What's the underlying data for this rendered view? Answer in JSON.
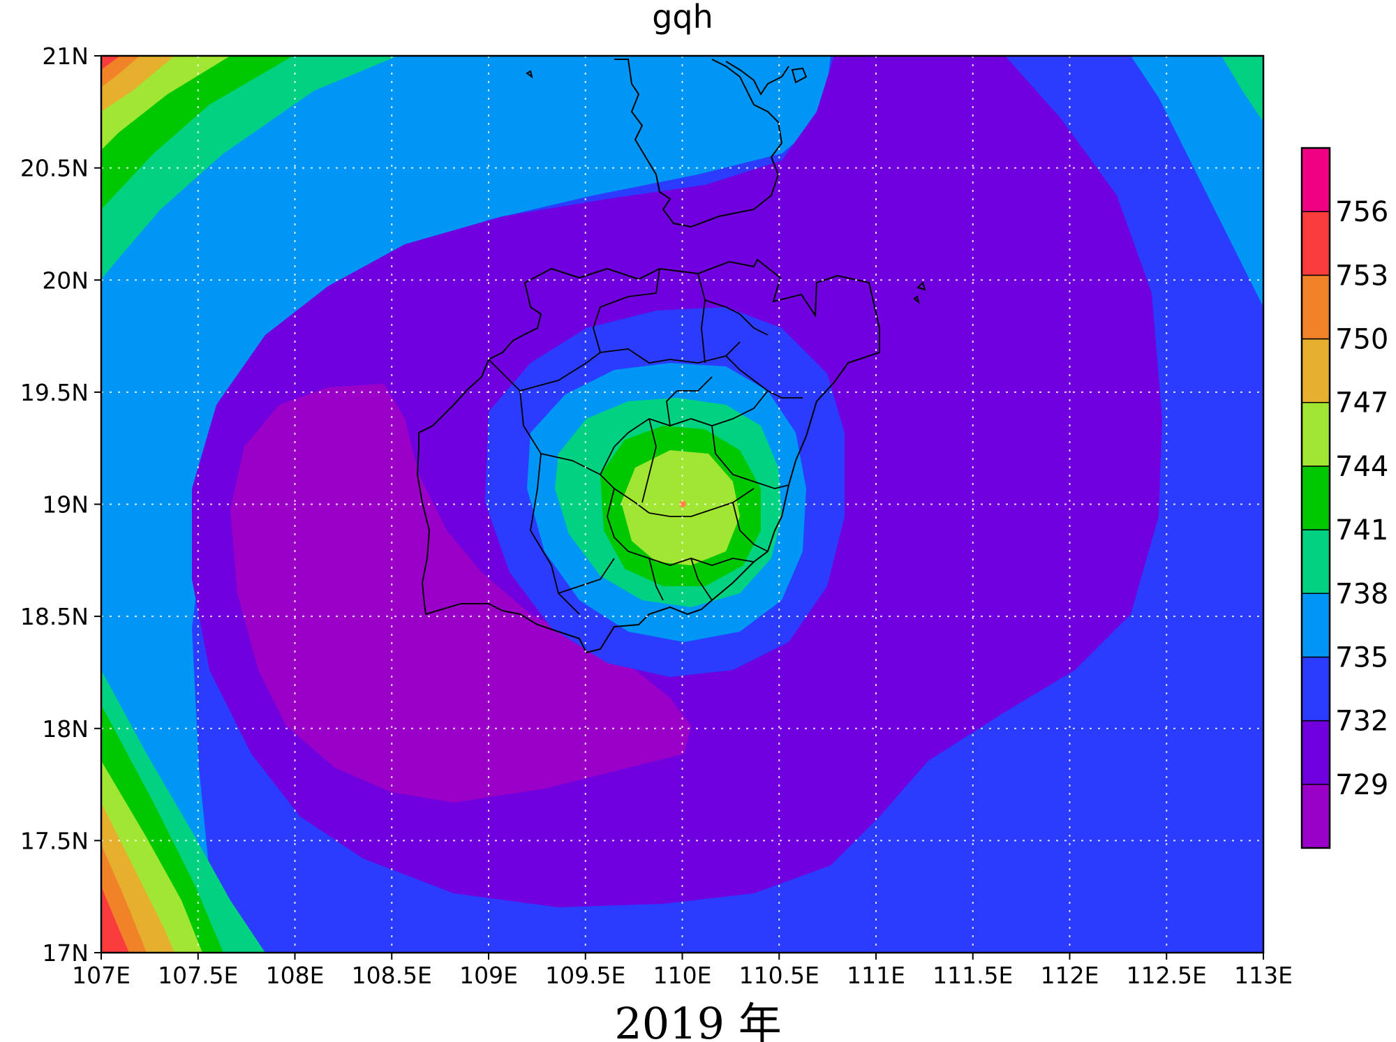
{
  "title": "gqh",
  "caption": "2019 年",
  "chart_data": {
    "type": "heatmap",
    "variable": "gqh",
    "x_ticks": [
      "107E",
      "107.5E",
      "108E",
      "108.5E",
      "109E",
      "109.5E",
      "110E",
      "110.5E",
      "111E",
      "111.5E",
      "112E",
      "112.5E",
      "113E"
    ],
    "y_ticks": [
      "17N",
      "17.5N",
      "18N",
      "18.5N",
      "19N",
      "19.5N",
      "20N",
      "20.5N",
      "21N"
    ],
    "xlim": [
      107,
      113
    ],
    "ylim": [
      17,
      21
    ],
    "grid": true,
    "colorbar": {
      "placement": "right",
      "levels": [
        729,
        732,
        735,
        738,
        741,
        744,
        747,
        750,
        753,
        756
      ],
      "level_labels": [
        "729",
        "732",
        "735",
        "738",
        "741",
        "744",
        "747",
        "750",
        "753",
        "756"
      ],
      "colors": [
        "#9b00c8",
        "#7000dd",
        "#2b3cff",
        "#0096f5",
        "#00d282",
        "#00c800",
        "#a0e632",
        "#e6af2d",
        "#f08228",
        "#fa3c3c",
        "#f00082"
      ]
    },
    "features": {
      "center": {
        "lon": 110.0,
        "lat": 19.0,
        "value": 746
      },
      "west_min": {
        "lon": 108.6,
        "lat": 18.6,
        "value": 728
      }
    }
  }
}
